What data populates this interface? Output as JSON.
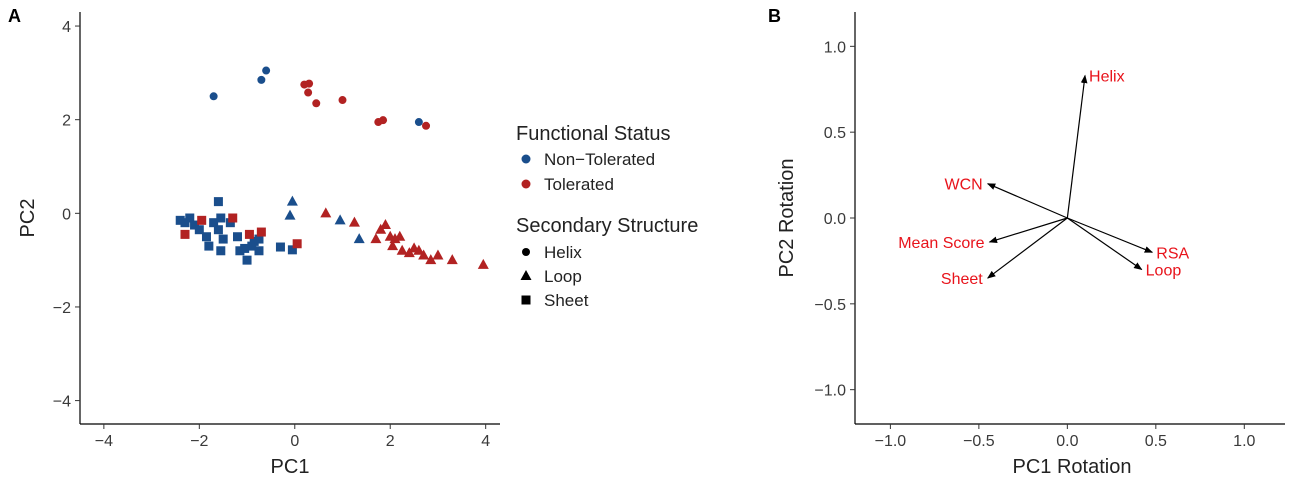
{
  "chart_data": [
    {
      "panel": "A",
      "type": "scatter",
      "xlabel": "PC1",
      "ylabel": "PC2",
      "xlim": [
        -4.5,
        4.3
      ],
      "ylim": [
        -4.5,
        4.3
      ],
      "xticks": [
        -4,
        -2,
        0,
        2,
        4
      ],
      "yticks": [
        -4,
        -2,
        0,
        2,
        4
      ],
      "xtick_labels": [
        "−4",
        "−2",
        "0",
        "2",
        "4"
      ],
      "ytick_labels": [
        "−4",
        "−2",
        "0",
        "2",
        "4"
      ],
      "grid": false,
      "legend": {
        "position": "right",
        "color_title": "Functional Status",
        "color_entries": [
          {
            "label": "Non−Tolerated",
            "color": "#1a4e8c"
          },
          {
            "label": "Tolerated",
            "color": "#b22222"
          }
        ],
        "shape_title": "Secondary Structure",
        "shape_entries": [
          {
            "label": "Helix",
            "shape": "circle"
          },
          {
            "label": "Loop",
            "shape": "triangle"
          },
          {
            "label": "Sheet",
            "shape": "square"
          }
        ]
      },
      "points": [
        {
          "x": -1.7,
          "y": 2.5,
          "status": "Non-Tolerated",
          "shape": "circle"
        },
        {
          "x": -0.7,
          "y": 2.85,
          "status": "Non-Tolerated",
          "shape": "circle"
        },
        {
          "x": -0.6,
          "y": 3.05,
          "status": "Non-Tolerated",
          "shape": "circle"
        },
        {
          "x": 2.6,
          "y": 1.95,
          "status": "Non-Tolerated",
          "shape": "circle"
        },
        {
          "x": 0.2,
          "y": 2.75,
          "status": "Tolerated",
          "shape": "circle"
        },
        {
          "x": 0.3,
          "y": 2.77,
          "status": "Tolerated",
          "shape": "circle"
        },
        {
          "x": 0.28,
          "y": 2.58,
          "status": "Tolerated",
          "shape": "circle"
        },
        {
          "x": 0.45,
          "y": 2.35,
          "status": "Tolerated",
          "shape": "circle"
        },
        {
          "x": 1.0,
          "y": 2.42,
          "status": "Tolerated",
          "shape": "circle"
        },
        {
          "x": 1.75,
          "y": 1.95,
          "status": "Tolerated",
          "shape": "circle"
        },
        {
          "x": 1.85,
          "y": 1.99,
          "status": "Tolerated",
          "shape": "circle"
        },
        {
          "x": 2.75,
          "y": 1.87,
          "status": "Tolerated",
          "shape": "circle"
        },
        {
          "x": -0.05,
          "y": 0.25,
          "status": "Non-Tolerated",
          "shape": "triangle"
        },
        {
          "x": -0.1,
          "y": -0.05,
          "status": "Non-Tolerated",
          "shape": "triangle"
        },
        {
          "x": 0.95,
          "y": -0.15,
          "status": "Non-Tolerated",
          "shape": "triangle"
        },
        {
          "x": 1.35,
          "y": -0.55,
          "status": "Non-Tolerated",
          "shape": "triangle"
        },
        {
          "x": 0.65,
          "y": 0.0,
          "status": "Tolerated",
          "shape": "triangle"
        },
        {
          "x": 1.25,
          "y": -0.2,
          "status": "Tolerated",
          "shape": "triangle"
        },
        {
          "x": 1.7,
          "y": -0.55,
          "status": "Tolerated",
          "shape": "triangle"
        },
        {
          "x": 1.8,
          "y": -0.35,
          "status": "Tolerated",
          "shape": "triangle"
        },
        {
          "x": 1.9,
          "y": -0.25,
          "status": "Tolerated",
          "shape": "triangle"
        },
        {
          "x": 2.0,
          "y": -0.5,
          "status": "Tolerated",
          "shape": "triangle"
        },
        {
          "x": 2.1,
          "y": -0.55,
          "status": "Tolerated",
          "shape": "triangle"
        },
        {
          "x": 2.2,
          "y": -0.5,
          "status": "Tolerated",
          "shape": "triangle"
        },
        {
          "x": 2.05,
          "y": -0.7,
          "status": "Tolerated",
          "shape": "triangle"
        },
        {
          "x": 2.25,
          "y": -0.8,
          "status": "Tolerated",
          "shape": "triangle"
        },
        {
          "x": 2.4,
          "y": -0.85,
          "status": "Tolerated",
          "shape": "triangle"
        },
        {
          "x": 2.5,
          "y": -0.75,
          "status": "Tolerated",
          "shape": "triangle"
        },
        {
          "x": 2.6,
          "y": -0.8,
          "status": "Tolerated",
          "shape": "triangle"
        },
        {
          "x": 2.7,
          "y": -0.9,
          "status": "Tolerated",
          "shape": "triangle"
        },
        {
          "x": 2.85,
          "y": -1.0,
          "status": "Tolerated",
          "shape": "triangle"
        },
        {
          "x": 3.0,
          "y": -0.9,
          "status": "Tolerated",
          "shape": "triangle"
        },
        {
          "x": 3.3,
          "y": -1.0,
          "status": "Tolerated",
          "shape": "triangle"
        },
        {
          "x": 3.95,
          "y": -1.1,
          "status": "Tolerated",
          "shape": "triangle"
        },
        {
          "x": -2.4,
          "y": -0.15,
          "status": "Non-Tolerated",
          "shape": "square"
        },
        {
          "x": -2.3,
          "y": -0.2,
          "status": "Non-Tolerated",
          "shape": "square"
        },
        {
          "x": -2.2,
          "y": -0.1,
          "status": "Non-Tolerated",
          "shape": "square"
        },
        {
          "x": -2.1,
          "y": -0.25,
          "status": "Non-Tolerated",
          "shape": "square"
        },
        {
          "x": -2.0,
          "y": -0.35,
          "status": "Non-Tolerated",
          "shape": "square"
        },
        {
          "x": -1.85,
          "y": -0.5,
          "status": "Non-Tolerated",
          "shape": "square"
        },
        {
          "x": -1.8,
          "y": -0.7,
          "status": "Non-Tolerated",
          "shape": "square"
        },
        {
          "x": -1.7,
          "y": -0.2,
          "status": "Non-Tolerated",
          "shape": "square"
        },
        {
          "x": -1.6,
          "y": 0.25,
          "status": "Non-Tolerated",
          "shape": "square"
        },
        {
          "x": -1.55,
          "y": -0.1,
          "status": "Non-Tolerated",
          "shape": "square"
        },
        {
          "x": -1.6,
          "y": -0.35,
          "status": "Non-Tolerated",
          "shape": "square"
        },
        {
          "x": -1.5,
          "y": -0.55,
          "status": "Non-Tolerated",
          "shape": "square"
        },
        {
          "x": -1.55,
          "y": -0.8,
          "status": "Non-Tolerated",
          "shape": "square"
        },
        {
          "x": -1.35,
          "y": -0.2,
          "status": "Non-Tolerated",
          "shape": "square"
        },
        {
          "x": -1.2,
          "y": -0.5,
          "status": "Non-Tolerated",
          "shape": "square"
        },
        {
          "x": -1.15,
          "y": -0.8,
          "status": "Non-Tolerated",
          "shape": "square"
        },
        {
          "x": -1.05,
          "y": -0.75,
          "status": "Non-Tolerated",
          "shape": "square"
        },
        {
          "x": -1.0,
          "y": -1.0,
          "status": "Non-Tolerated",
          "shape": "square"
        },
        {
          "x": -0.9,
          "y": -0.7,
          "status": "Non-Tolerated",
          "shape": "square"
        },
        {
          "x": -0.85,
          "y": -0.6,
          "status": "Non-Tolerated",
          "shape": "square"
        },
        {
          "x": -0.75,
          "y": -0.55,
          "status": "Non-Tolerated",
          "shape": "square"
        },
        {
          "x": -0.75,
          "y": -0.8,
          "status": "Non-Tolerated",
          "shape": "square"
        },
        {
          "x": -0.3,
          "y": -0.72,
          "status": "Non-Tolerated",
          "shape": "square"
        },
        {
          "x": -0.05,
          "y": -0.78,
          "status": "Non-Tolerated",
          "shape": "square"
        },
        {
          "x": -2.3,
          "y": -0.45,
          "status": "Tolerated",
          "shape": "square"
        },
        {
          "x": -1.95,
          "y": -0.15,
          "status": "Tolerated",
          "shape": "square"
        },
        {
          "x": -1.3,
          "y": -0.1,
          "status": "Tolerated",
          "shape": "square"
        },
        {
          "x": -0.95,
          "y": -0.45,
          "status": "Tolerated",
          "shape": "square"
        },
        {
          "x": -0.7,
          "y": -0.4,
          "status": "Tolerated",
          "shape": "square"
        },
        {
          "x": 0.05,
          "y": -0.65,
          "status": "Tolerated",
          "shape": "square"
        }
      ]
    },
    {
      "panel": "B",
      "type": "scatter",
      "subtype": "biplot-vectors",
      "xlabel": "PC1 Rotation",
      "ylabel": "PC2 Rotation",
      "xlim": [
        -1.2,
        1.23
      ],
      "ylim": [
        -1.2,
        1.2
      ],
      "xticks": [
        -1.0,
        -0.5,
        0.0,
        0.5,
        1.0
      ],
      "yticks": [
        -1.0,
        -0.5,
        0.0,
        0.5,
        1.0
      ],
      "xtick_labels": [
        "−1.0",
        "−0.5",
        "0.0",
        "0.5",
        "1.0"
      ],
      "ytick_labels": [
        "−1.0",
        "−0.5",
        "0.0",
        "0.5",
        "1.0"
      ],
      "grid": false,
      "label_color": "#e8131b",
      "vectors": [
        {
          "label": "Helix",
          "x": 0.1,
          "y": 0.83,
          "anchor": "start"
        },
        {
          "label": "WCN",
          "x": -0.45,
          "y": 0.2,
          "anchor": "end"
        },
        {
          "label": "Mean Score",
          "x": -0.44,
          "y": -0.14,
          "anchor": "end"
        },
        {
          "label": "Sheet",
          "x": -0.45,
          "y": -0.35,
          "anchor": "end"
        },
        {
          "label": "RSA",
          "x": 0.48,
          "y": -0.2,
          "anchor": "start"
        },
        {
          "label": "Loop",
          "x": 0.42,
          "y": -0.3,
          "anchor": "start"
        }
      ]
    }
  ]
}
